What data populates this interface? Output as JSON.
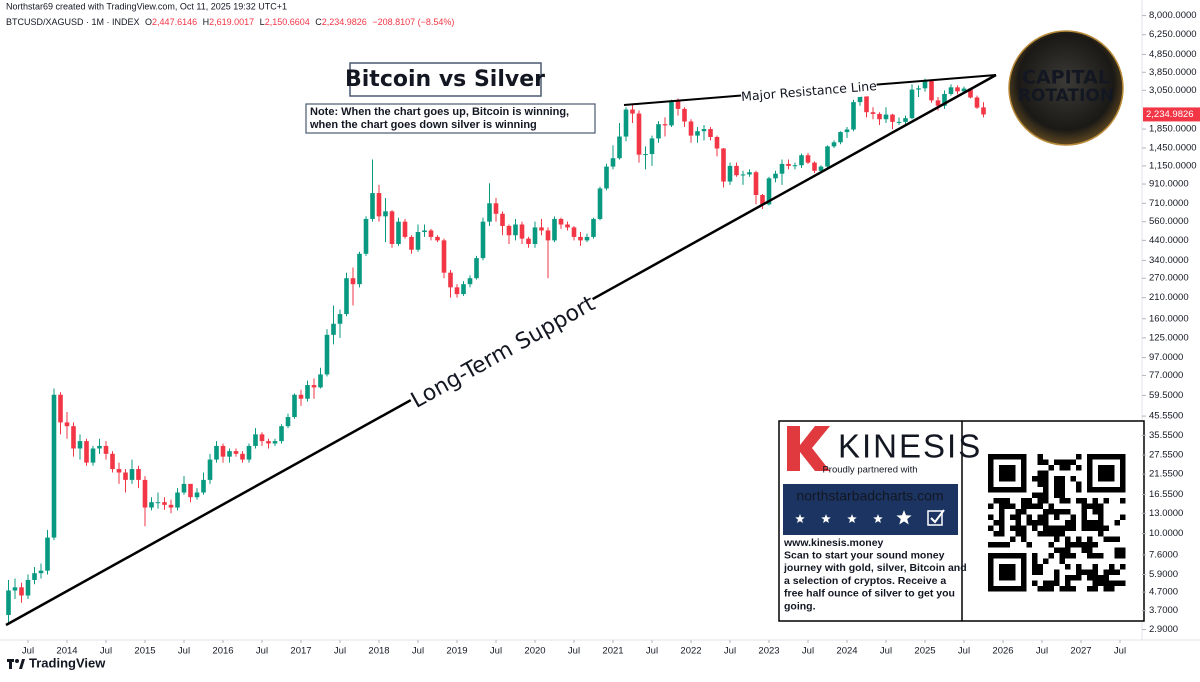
{
  "header": {
    "author_line": "Northstar69 created with TradingView.com, Oct 11, 2025 19:32 UTC+1",
    "symbol": "BTCUSD/XAGUSD · 1M · INDEX",
    "ohlc": [
      "O",
      "2,447.6146",
      "H",
      "2,619.0017",
      "L",
      "2,150.6604",
      "C",
      "2,234.9826",
      "−208.8107 (−8.54%)"
    ]
  },
  "annotations": {
    "title": "Bitcoin vs Silver",
    "note": [
      "Note: When the chart goes up, Bitcoin is winning,",
      "when the chart goes down silver is winning"
    ],
    "resistance": "Major Resistance Line",
    "support": "Long-Term Support"
  },
  "logo": {
    "line1": "CAPITAL",
    "line2": "ROTATION"
  },
  "ad": {
    "brand": "KINESIS",
    "partner": "Proudly partnered with",
    "site": "northstarbadcharts.com",
    "lines": [
      "www.kinesis.money",
      "Scan to start your sound money",
      "journey with gold, silver, Bitcoin and",
      "a selection of cryptos. Receive a",
      "free half ounce of silver to get you",
      "going."
    ]
  },
  "footer": {
    "brand": "TradingView"
  },
  "chart_data": {
    "type": "candlestick",
    "log_scale": true,
    "grid": false,
    "colors": {
      "up": "#089981",
      "down": "#f23645"
    },
    "last_label": "2,234.9826",
    "x": [
      "2013-04",
      "2013-05",
      "2013-06",
      "2013-07",
      "2013-08",
      "2013-09",
      "2013-10",
      "2013-11",
      "2013-12",
      "2014-01",
      "2014-02",
      "2014-03",
      "2014-04",
      "2014-05",
      "2014-06",
      "2014-07",
      "2014-08",
      "2014-09",
      "2014-10",
      "2014-11",
      "2014-12",
      "2015-01",
      "2015-02",
      "2015-03",
      "2015-04",
      "2015-05",
      "2015-06",
      "2015-07",
      "2015-08",
      "2015-09",
      "2015-10",
      "2015-11",
      "2015-12",
      "2016-01",
      "2016-02",
      "2016-03",
      "2016-04",
      "2016-05",
      "2016-06",
      "2016-07",
      "2016-08",
      "2016-09",
      "2016-10",
      "2016-11",
      "2016-12",
      "2017-01",
      "2017-02",
      "2017-03",
      "2017-04",
      "2017-05",
      "2017-06",
      "2017-07",
      "2017-08",
      "2017-09",
      "2017-10",
      "2017-11",
      "2017-12",
      "2018-01",
      "2018-02",
      "2018-03",
      "2018-04",
      "2018-05",
      "2018-06",
      "2018-07",
      "2018-08",
      "2018-09",
      "2018-10",
      "2018-11",
      "2018-12",
      "2019-01",
      "2019-02",
      "2019-03",
      "2019-04",
      "2019-05",
      "2019-06",
      "2019-07",
      "2019-08",
      "2019-09",
      "2019-10",
      "2019-11",
      "2019-12",
      "2020-01",
      "2020-02",
      "2020-03",
      "2020-04",
      "2020-05",
      "2020-06",
      "2020-07",
      "2020-08",
      "2020-09",
      "2020-10",
      "2020-11",
      "2020-12",
      "2021-01",
      "2021-02",
      "2021-03",
      "2021-04",
      "2021-05",
      "2021-06",
      "2021-07",
      "2021-08",
      "2021-09",
      "2021-10",
      "2021-11",
      "2021-12",
      "2022-01",
      "2022-02",
      "2022-03",
      "2022-04",
      "2022-05",
      "2022-06",
      "2022-07",
      "2022-08",
      "2022-09",
      "2022-10",
      "2022-11",
      "2022-12",
      "2023-01",
      "2023-02",
      "2023-03",
      "2023-04",
      "2023-05",
      "2023-06",
      "2023-07",
      "2023-08",
      "2023-09",
      "2023-10",
      "2023-11",
      "2023-12",
      "2024-01",
      "2024-02",
      "2024-03",
      "2024-04",
      "2024-05",
      "2024-06",
      "2024-07",
      "2024-08",
      "2024-09",
      "2024-10",
      "2024-11",
      "2024-12",
      "2025-01",
      "2025-02",
      "2025-03",
      "2025-04",
      "2025-05",
      "2025-06",
      "2025-07",
      "2025-08",
      "2025-09",
      "2025-10"
    ],
    "open": [
      3.5,
      4.8,
      5.0,
      4.5,
      5.5,
      6.0,
      6.2,
      9.5,
      60,
      42,
      40,
      30,
      33,
      25,
      30,
      31,
      28,
      23,
      22,
      20,
      23,
      20,
      14,
      15,
      15,
      14.5,
      14,
      17,
      19,
      16,
      17,
      20,
      26,
      31,
      27,
      29,
      28,
      26,
      31,
      36,
      33,
      32,
      33,
      40,
      45,
      60,
      57,
      68,
      66,
      78,
      130,
      150,
      170,
      270,
      250,
      370,
      580,
      810,
      600,
      640,
      420,
      560,
      460,
      390,
      490,
      500,
      460,
      440,
      290,
      240,
      220,
      250,
      270,
      350,
      560,
      710,
      620,
      530,
      470,
      540,
      450,
      420,
      520,
      500,
      440,
      580,
      540,
      520,
      460,
      440,
      460,
      580,
      860,
      1140,
      1270,
      1680,
      2380,
      2260,
      1330,
      1340,
      1640,
      1970,
      1940,
      2680,
      2400,
      2040,
      1700,
      1800,
      1850,
      1670,
      1440,
      940,
      1150,
      1020,
      1030,
      1060,
      790,
      700,
      980,
      1040,
      1180,
      1150,
      1160,
      1320,
      1200,
      1080,
      1140,
      1480,
      1560,
      1780,
      1840,
      2620,
      2830,
      2300,
      2250,
      2100,
      2230,
      2030,
      2030,
      2130,
      3080,
      3130,
      3460,
      2680,
      2500,
      2910,
      3170,
      3010,
      3120,
      2780,
      2447.6146
    ],
    "high": [
      5.5,
      5.6,
      5.3,
      5.9,
      6.5,
      6.8,
      10.5,
      65,
      62,
      48,
      42,
      36,
      34,
      31,
      34,
      33,
      29,
      25,
      23,
      26,
      24,
      21,
      16,
      17,
      16,
      15.5,
      18,
      21,
      19,
      18,
      22,
      28,
      33,
      32,
      30,
      30,
      29,
      32,
      39,
      37,
      34,
      34,
      41,
      47,
      61,
      64,
      72,
      74,
      85,
      140,
      190,
      180,
      290,
      310,
      380,
      600,
      1250,
      900,
      760,
      650,
      590,
      580,
      470,
      540,
      540,
      510,
      470,
      450,
      300,
      250,
      260,
      280,
      360,
      590,
      920,
      760,
      640,
      540,
      580,
      560,
      460,
      560,
      580,
      520,
      600,
      590,
      560,
      530,
      490,
      480,
      590,
      880,
      1180,
      1500,
      2000,
      2450,
      2550,
      2350,
      1480,
      1700,
      2050,
      2150,
      2700,
      2750,
      2450,
      2100,
      1900,
      1950,
      1900,
      1700,
      1450,
      1200,
      1200,
      1080,
      1100,
      1080,
      800,
      1000,
      1080,
      1250,
      1250,
      1200,
      1350,
      1360,
      1220,
      1160,
      1500,
      1600,
      1800,
      1900,
      2700,
      3100,
      2900,
      2450,
      2300,
      2450,
      2250,
      2150,
      2200,
      3300,
      3250,
      3550,
      3500,
      2800,
      3050,
      3300,
      3250,
      3200,
      3150,
      2850,
      2619.0017
    ],
    "low": [
      3.1,
      4.3,
      4.1,
      4.3,
      5.2,
      5.6,
      5.9,
      9.2,
      36,
      34,
      27,
      26,
      24,
      24,
      28,
      26,
      22,
      19,
      17,
      19,
      18,
      11,
      13.5,
      13.8,
      13.6,
      13,
      13.5,
      16.5,
      15,
      15.5,
      16.5,
      19,
      25,
      25,
      25,
      27,
      25,
      25,
      30,
      31,
      30,
      31,
      32,
      39,
      44,
      52,
      55,
      57,
      65,
      76,
      115,
      125,
      165,
      190,
      240,
      360,
      560,
      560,
      430,
      400,
      410,
      450,
      370,
      380,
      460,
      440,
      430,
      270,
      210,
      210,
      215,
      240,
      265,
      340,
      530,
      560,
      470,
      420,
      440,
      420,
      400,
      400,
      470,
      270,
      430,
      510,
      500,
      440,
      410,
      430,
      450,
      570,
      840,
      1100,
      1250,
      1580,
      2000,
      1200,
      1100,
      1150,
      1550,
      1680,
      1900,
      2200,
      1900,
      1550,
      1550,
      1600,
      1600,
      1300,
      870,
      900,
      1000,
      900,
      1000,
      700,
      660,
      690,
      930,
      900,
      1100,
      1100,
      1120,
      1180,
      1050,
      1050,
      1120,
      1450,
      1520,
      1650,
      1800,
      2500,
      2150,
      2100,
      1950,
      2000,
      1850,
      1950,
      1950,
      2100,
      2800,
      3000,
      2600,
      2350,
      2400,
      2850,
      2900,
      2950,
      2750,
      2400,
      2150.6604
    ],
    "close": [
      4.8,
      5.0,
      4.5,
      5.5,
      6.0,
      6.2,
      9.5,
      60,
      42,
      40,
      30,
      33,
      25,
      30,
      31,
      28,
      23,
      22,
      20,
      23,
      20,
      14,
      15,
      15,
      14.5,
      14,
      17,
      19,
      16,
      17,
      20,
      26,
      31,
      27,
      29,
      28,
      26,
      31,
      36,
      33,
      32,
      33,
      40,
      45,
      60,
      57,
      68,
      66,
      78,
      130,
      150,
      170,
      270,
      250,
      370,
      580,
      810,
      600,
      640,
      420,
      560,
      460,
      390,
      490,
      500,
      460,
      440,
      290,
      240,
      220,
      250,
      270,
      350,
      560,
      710,
      620,
      530,
      470,
      540,
      450,
      420,
      520,
      500,
      440,
      580,
      540,
      520,
      460,
      440,
      460,
      580,
      860,
      1140,
      1270,
      1680,
      2380,
      2260,
      1330,
      1340,
      1640,
      1970,
      1940,
      2680,
      2400,
      2040,
      1700,
      1800,
      1850,
      1670,
      1440,
      940,
      1150,
      1020,
      1030,
      1060,
      790,
      700,
      980,
      1040,
      1180,
      1150,
      1160,
      1320,
      1200,
      1080,
      1140,
      1480,
      1560,
      1780,
      1840,
      2620,
      2830,
      2300,
      2250,
      2100,
      2230,
      2030,
      2030,
      2130,
      3080,
      3130,
      3460,
      2680,
      2500,
      2910,
      3170,
      3010,
      3120,
      2780,
      2440,
      2234.9826
    ],
    "ylim": [
      2.6,
      8600
    ],
    "yticks": [
      {
        "value": 8000,
        "label": "8,000.0000"
      },
      {
        "value": 6250,
        "label": "6,250.0000"
      },
      {
        "value": 4850,
        "label": "4,850.0000"
      },
      {
        "value": 3850,
        "label": "3,850.0000"
      },
      {
        "value": 3050,
        "label": "3,050.0000"
      },
      {
        "value": 1850,
        "label": "1,850.0000"
      },
      {
        "value": 1450,
        "label": "1,450.0000"
      },
      {
        "value": 1150,
        "label": "1,150.0000"
      },
      {
        "value": 910,
        "label": "910.0000"
      },
      {
        "value": 710,
        "label": "710.0000"
      },
      {
        "value": 560,
        "label": "560.0000"
      },
      {
        "value": 440,
        "label": "440.0000"
      },
      {
        "value": 340,
        "label": "340.0000"
      },
      {
        "value": 270,
        "label": "270.0000"
      },
      {
        "value": 210,
        "label": "210.0000"
      },
      {
        "value": 160,
        "label": "160.0000"
      },
      {
        "value": 125,
        "label": "125.0000"
      },
      {
        "value": 97,
        "label": "97.0000"
      },
      {
        "value": 77,
        "label": "77.0000"
      },
      {
        "value": 59.5,
        "label": "59.5000"
      },
      {
        "value": 45.55,
        "label": "45.5500"
      },
      {
        "value": 35.55,
        "label": "35.5500"
      },
      {
        "value": 27.55,
        "label": "27.5500"
      },
      {
        "value": 21.55,
        "label": "21.5500"
      },
      {
        "value": 16.55,
        "label": "16.5500"
      },
      {
        "value": 13,
        "label": "13.0000"
      },
      {
        "value": 10,
        "label": "10.0000"
      },
      {
        "value": 7.6,
        "label": "7.6000"
      },
      {
        "value": 5.9,
        "label": "5.9000"
      },
      {
        "value": 4.7,
        "label": "4.7000"
      },
      {
        "value": 3.7,
        "label": "3.7000"
      },
      {
        "value": 2.9,
        "label": "2.9000"
      }
    ],
    "xticks": [
      {
        "value": "2013-07",
        "label": "Jul"
      },
      {
        "value": "2014-01",
        "label": "2014"
      },
      {
        "value": "2014-07",
        "label": "Jul"
      },
      {
        "value": "2015-01",
        "label": "2015"
      },
      {
        "value": "2015-07",
        "label": "Jul"
      },
      {
        "value": "2016-01",
        "label": "2016"
      },
      {
        "value": "2016-07",
        "label": "Jul"
      },
      {
        "value": "2017-01",
        "label": "2017"
      },
      {
        "value": "2017-07",
        "label": "Jul"
      },
      {
        "value": "2018-01",
        "label": "2018"
      },
      {
        "value": "2018-07",
        "label": "Jul"
      },
      {
        "value": "2019-01",
        "label": "2019"
      },
      {
        "value": "2019-07",
        "label": "Jul"
      },
      {
        "value": "2020-01",
        "label": "2020"
      },
      {
        "value": "2020-07",
        "label": "Jul"
      },
      {
        "value": "2021-01",
        "label": "2021"
      },
      {
        "value": "2021-07",
        "label": "Jul"
      },
      {
        "value": "2022-01",
        "label": "2022"
      },
      {
        "value": "2022-07",
        "label": "Jul"
      },
      {
        "value": "2023-01",
        "label": "2023"
      },
      {
        "value": "2023-07",
        "label": "Jul"
      },
      {
        "value": "2024-01",
        "label": "2024"
      },
      {
        "value": "2024-07",
        "label": "Jul"
      },
      {
        "value": "2025-01",
        "label": "2025"
      },
      {
        "value": "2025-07",
        "label": "Jul"
      },
      {
        "value": "2026-01",
        "label": "2026"
      },
      {
        "value": "2026-07",
        "label": "Jul"
      },
      {
        "value": "2027-01",
        "label": "2027"
      },
      {
        "value": "2027-07",
        "label": "Jul"
      }
    ]
  }
}
